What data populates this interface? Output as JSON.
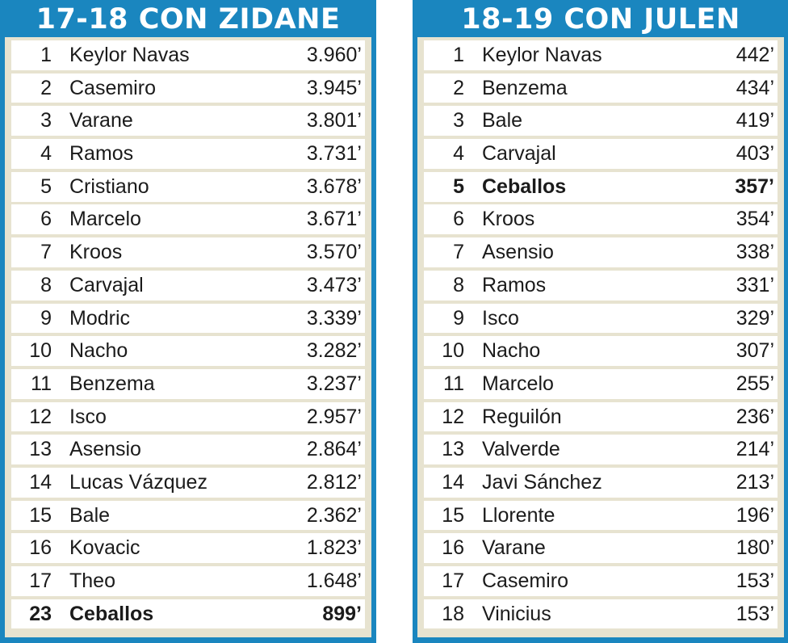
{
  "left_table": {
    "title": "17-18 CON ZIDANE",
    "rows": [
      {
        "rank": "1",
        "name": "Keylor Navas",
        "minutes": "3.960’"
      },
      {
        "rank": "2",
        "name": "Casemiro",
        "minutes": "3.945’"
      },
      {
        "rank": "3",
        "name": "Varane",
        "minutes": "3.801’"
      },
      {
        "rank": "4",
        "name": "Ramos",
        "minutes": "3.731’"
      },
      {
        "rank": "5",
        "name": "Cristiano",
        "minutes": "3.678’"
      },
      {
        "rank": "6",
        "name": "Marcelo",
        "minutes": "3.671’"
      },
      {
        "rank": "7",
        "name": "Kroos",
        "minutes": "3.570’"
      },
      {
        "rank": "8",
        "name": "Carvajal",
        "minutes": "3.473’"
      },
      {
        "rank": "9",
        "name": "Modric",
        "minutes": "3.339’"
      },
      {
        "rank": "10",
        "name": "Nacho",
        "minutes": "3.282’"
      },
      {
        "rank": "11",
        "name": "Benzema",
        "minutes": "3.237’"
      },
      {
        "rank": "12",
        "name": "Isco",
        "minutes": "2.957’"
      },
      {
        "rank": "13",
        "name": "Asensio",
        "minutes": "2.864’"
      },
      {
        "rank": "14",
        "name": "Lucas Vázquez",
        "minutes": "2.812’"
      },
      {
        "rank": "15",
        "name": "Bale",
        "minutes": "2.362’"
      },
      {
        "rank": "16",
        "name": "Kovacic",
        "minutes": "1.823’"
      },
      {
        "rank": "17",
        "name": "Theo",
        "minutes": "1.648’"
      },
      {
        "rank": "23",
        "name": "Ceballos",
        "minutes": "899’",
        "highlight": true
      }
    ]
  },
  "right_table": {
    "title": "18-19 CON JULEN",
    "rows": [
      {
        "rank": "1",
        "name": "Keylor Navas",
        "minutes": "442’"
      },
      {
        "rank": "2",
        "name": "Benzema",
        "minutes": "434’"
      },
      {
        "rank": "3",
        "name": "Bale",
        "minutes": "419’"
      },
      {
        "rank": "4",
        "name": "Carvajal",
        "minutes": "403’"
      },
      {
        "rank": "5",
        "name": "Ceballos",
        "minutes": "357’",
        "highlight": true
      },
      {
        "rank": "6",
        "name": "Kroos",
        "minutes": "354’"
      },
      {
        "rank": "7",
        "name": "Asensio",
        "minutes": "338’"
      },
      {
        "rank": "8",
        "name": "Ramos",
        "minutes": "331’"
      },
      {
        "rank": "9",
        "name": "Isco",
        "minutes": "329’"
      },
      {
        "rank": "10",
        "name": "Nacho",
        "minutes": "307’"
      },
      {
        "rank": "11",
        "name": "Marcelo",
        "minutes": "255’"
      },
      {
        "rank": "12",
        "name": "Reguilón",
        "minutes": "236’"
      },
      {
        "rank": "13",
        "name": "Valverde",
        "minutes": "214’"
      },
      {
        "rank": "14",
        "name": "Javi Sánchez",
        "minutes": "213’"
      },
      {
        "rank": "15",
        "name": "Llorente",
        "minutes": "196’"
      },
      {
        "rank": "16",
        "name": "Varane",
        "minutes": "180’"
      },
      {
        "rank": "17",
        "name": "Casemiro",
        "minutes": "153’"
      },
      {
        "rank": "18",
        "name": "Vinicius",
        "minutes": "153’"
      }
    ]
  },
  "colors": {
    "header_blue": "#1a86bf",
    "table_beige": "#e7e3d0",
    "row_white": "#ffffff",
    "text": "#1b1b1b"
  }
}
